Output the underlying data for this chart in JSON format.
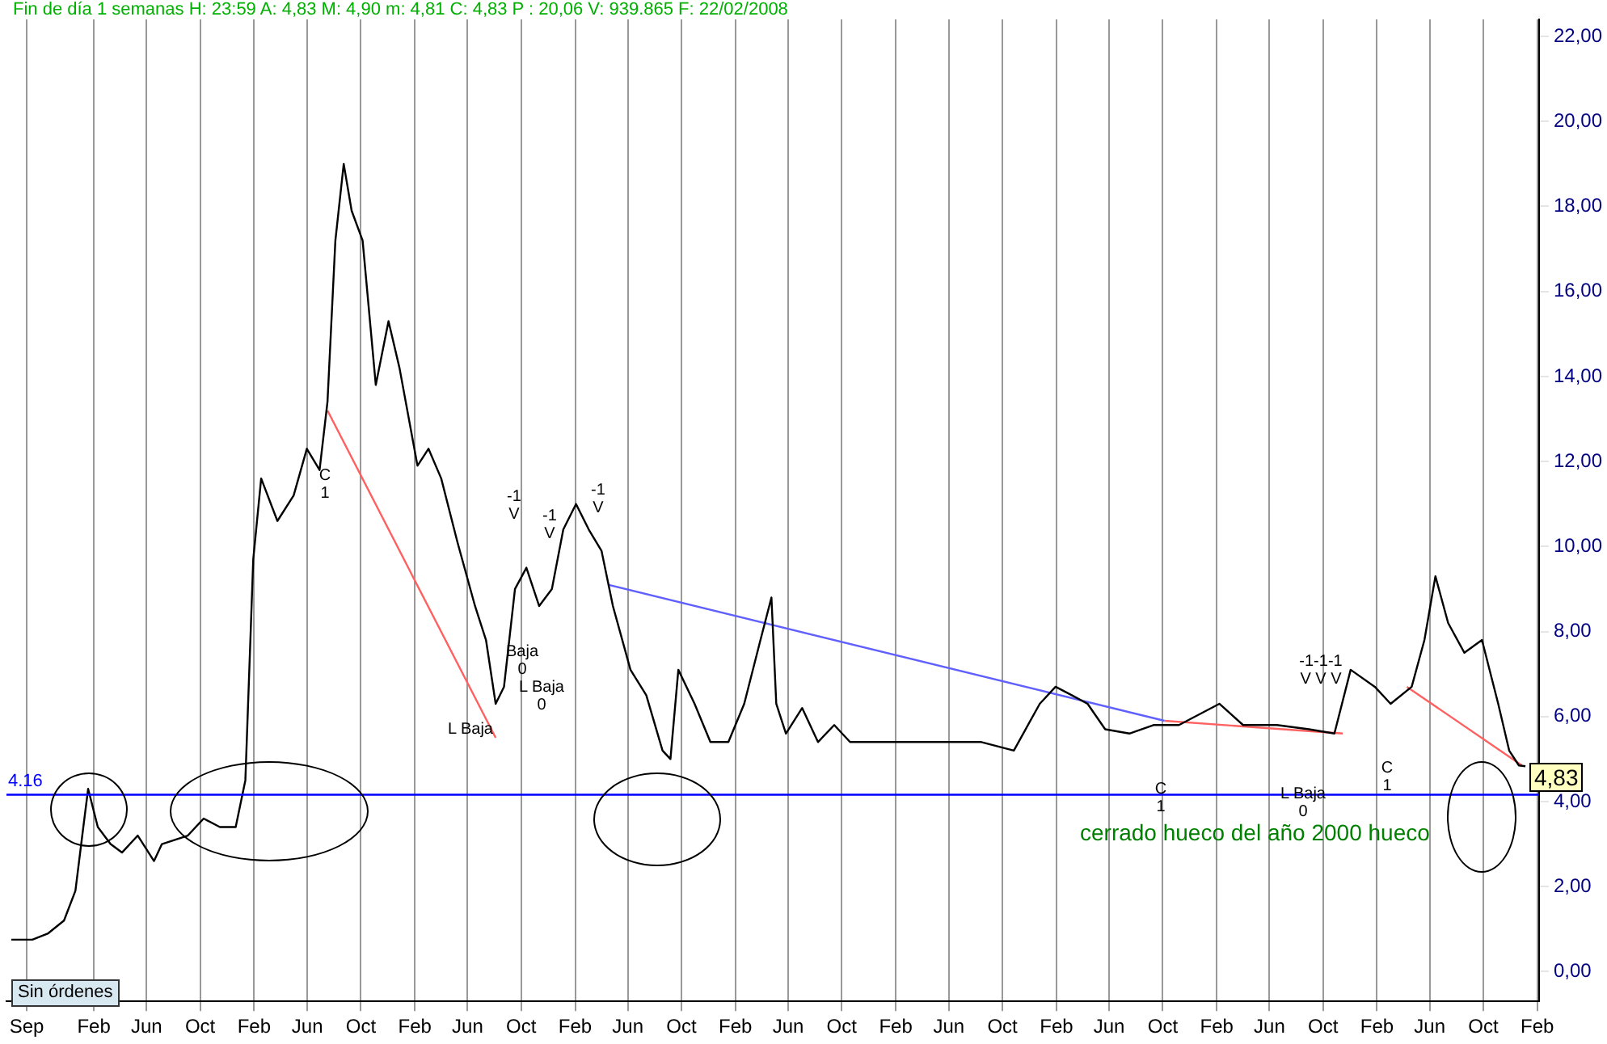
{
  "chart_data": {
    "type": "line",
    "title": "Fin de día 1 semanas H: 23:59 A: 4,83 M: 4,90 m: 4,81 C: 4,83 P : 20,06 V: 939.865 F: 22/02/2008",
    "series": [
      {
        "color": "#000000",
        "x": [
          "1998-07-28",
          "1998-09-14",
          "1998-10-20",
          "1998-11-25",
          "1998-12-21",
          "1999-01-08",
          "1999-01-19",
          "1999-02-10",
          "1999-03-11",
          "1999-04-06",
          "1999-05-12",
          "1999-06-18",
          "1999-07-06",
          "1999-09-03",
          "1999-10-09",
          "1999-11-15",
          "1999-12-21",
          "2000-01-12",
          "2000-01-30",
          "2000-02-17",
          "2000-03-25",
          "2000-05-01",
          "2000-05-31",
          "2000-06-29",
          "2000-07-17",
          "2000-08-04",
          "2000-08-23",
          "2000-09-10",
          "2000-10-05",
          "2000-11-04",
          "2000-12-03",
          "2000-12-28",
          "2001-02-07",
          "2001-03-04",
          "2001-04-02",
          "2001-05-09",
          "2001-06-18",
          "2001-07-13",
          "2001-08-04",
          "2001-08-23",
          "2001-09-17",
          "2001-10-13",
          "2001-11-11",
          "2001-12-10",
          "2002-01-05",
          "2002-02-03",
          "2002-03-04",
          "2002-04-02",
          "2002-04-28",
          "2002-06-07",
          "2002-07-13",
          "2002-08-19",
          "2002-09-06",
          "2002-09-24",
          "2002-10-31",
          "2002-12-06",
          "2003-01-16",
          "2003-02-21",
          "2003-03-30",
          "2003-04-24",
          "2003-05-05",
          "2003-05-27",
          "2003-07-03",
          "2003-08-08",
          "2003-09-14",
          "2003-10-20",
          "2004-01-05",
          "2004-03-18",
          "2004-06-02",
          "2004-08-14",
          "2004-10-27",
          "2004-12-25",
          "2005-01-30",
          "2005-03-08",
          "2005-04-13",
          "2005-05-23",
          "2005-07-17",
          "2005-09-10",
          "2005-11-07",
          "2006-02-07",
          "2006-04-02",
          "2006-06-18",
          "2006-08-30",
          "2006-10-27",
          "2006-12-03",
          "2007-01-27",
          "2007-03-04",
          "2007-04-21",
          "2007-05-20",
          "2007-06-14",
          "2007-07-13",
          "2007-08-19",
          "2007-09-28",
          "2007-11-04",
          "2007-11-29",
          "2007-12-21",
          "2008-01-05"
        ],
        "values": [
          0.75,
          0.75,
          0.9,
          1.2,
          1.9,
          3.4,
          4.3,
          3.4,
          3.0,
          2.8,
          3.2,
          2.6,
          3.0,
          3.2,
          3.6,
          3.4,
          3.4,
          4.5,
          9.7,
          11.6,
          10.6,
          11.2,
          12.3,
          11.8,
          13.4,
          17.2,
          19.0,
          17.9,
          17.2,
          13.8,
          15.3,
          14.2,
          11.9,
          12.3,
          11.6,
          10.1,
          8.6,
          7.8,
          6.3,
          6.7,
          9.0,
          9.5,
          8.6,
          9.0,
          10.4,
          11.0,
          10.4,
          9.9,
          8.6,
          7.1,
          6.5,
          5.2,
          5.0,
          7.1,
          6.3,
          5.4,
          5.4,
          6.3,
          7.8,
          8.8,
          6.3,
          5.6,
          6.2,
          5.4,
          5.8,
          5.4,
          5.4,
          5.4,
          5.4,
          5.4,
          5.2,
          6.3,
          6.7,
          6.5,
          6.3,
          5.7,
          5.6,
          5.8,
          5.8,
          6.3,
          5.8,
          5.8,
          5.7,
          5.6,
          7.1,
          6.7,
          6.3,
          6.7,
          7.8,
          9.3,
          8.2,
          7.5,
          7.8,
          6.3,
          5.2,
          4.85,
          4.83
        ]
      },
      {
        "type": "line",
        "color": "#ff6060",
        "x": [
          "2000-07-17",
          "2001-08-04"
        ],
        "values": [
          13.2,
          5.5
        ]
      },
      {
        "type": "line",
        "color": "#6060ff",
        "x": [
          "2002-04-17",
          "2005-10-05"
        ],
        "values": [
          9.1,
          5.9
        ]
      },
      {
        "type": "line",
        "color": "#ff6060",
        "x": [
          "2005-10-05",
          "2006-11-15"
        ],
        "values": [
          5.9,
          5.6
        ]
      },
      {
        "type": "line",
        "color": "#ff6060",
        "x": [
          "2007-04-10",
          "2007-12-28"
        ],
        "values": [
          6.7,
          4.85
        ]
      }
    ],
    "xlim": [
      "1998-07-17",
      "2008-02-05"
    ],
    "xticks": [
      {
        "value": "1998-09-01",
        "label": "Sep"
      },
      {
        "value": "1999-02-01",
        "label": "Feb"
      },
      {
        "value": "1999-06-01",
        "label": "Jun"
      },
      {
        "value": "1999-10-01",
        "label": "Oct"
      },
      {
        "value": "2000-02-01",
        "label": "Feb"
      },
      {
        "value": "2000-06-01",
        "label": "Jun"
      },
      {
        "value": "2000-10-01",
        "label": "Oct"
      },
      {
        "value": "2001-02-01",
        "label": "Feb"
      },
      {
        "value": "2001-06-01",
        "label": "Jun"
      },
      {
        "value": "2001-10-01",
        "label": "Oct"
      },
      {
        "value": "2002-02-01",
        "label": "Feb"
      },
      {
        "value": "2002-06-01",
        "label": "Jun"
      },
      {
        "value": "2002-10-01",
        "label": "Oct"
      },
      {
        "value": "2003-02-01",
        "label": "Feb"
      },
      {
        "value": "2003-06-01",
        "label": "Jun"
      },
      {
        "value": "2003-10-01",
        "label": "Oct"
      },
      {
        "value": "2004-02-01",
        "label": "Feb"
      },
      {
        "value": "2004-06-01",
        "label": "Jun"
      },
      {
        "value": "2004-10-01",
        "label": "Oct"
      },
      {
        "value": "2005-02-01",
        "label": "Feb"
      },
      {
        "value": "2005-06-01",
        "label": "Jun"
      },
      {
        "value": "2005-10-01",
        "label": "Oct"
      },
      {
        "value": "2006-02-01",
        "label": "Feb"
      },
      {
        "value": "2006-06-01",
        "label": "Jun"
      },
      {
        "value": "2006-10-01",
        "label": "Oct"
      },
      {
        "value": "2007-02-01",
        "label": "Feb"
      },
      {
        "value": "2007-06-01",
        "label": "Jun"
      },
      {
        "value": "2007-10-01",
        "label": "Oct"
      },
      {
        "value": "2008-02-01",
        "label": "Feb"
      }
    ],
    "ylim": [
      -0.7,
      22.4
    ],
    "yticks": [
      {
        "value": 0,
        "label": "0,00"
      },
      {
        "value": 2,
        "label": "2,00"
      },
      {
        "value": 4,
        "label": "4,00"
      },
      {
        "value": 6,
        "label": "6,00"
      },
      {
        "value": 8,
        "label": "8,00"
      },
      {
        "value": 10,
        "label": "10,00"
      },
      {
        "value": 12,
        "label": "12,00"
      },
      {
        "value": 14,
        "label": "14,00"
      },
      {
        "value": 16,
        "label": "16,00"
      },
      {
        "value": 18,
        "label": "18,00"
      },
      {
        "value": 20,
        "label": "20,00"
      },
      {
        "value": 22,
        "label": "22,00"
      }
    ],
    "ref_lines": [
      {
        "axis": "y",
        "value": 4.16,
        "label": "4.16",
        "color": "#0000ff"
      }
    ],
    "annotations": [
      "4,83",
      "C\n1",
      "-1\nV",
      "-1\nV",
      "L Baja",
      "Baja\n0",
      "L Baja\n0",
      "-1\nV",
      "C\n1",
      "-1-1-1\nV V V",
      "L Baja\n0",
      "C\n1",
      "cerrado hueco del año 2000 hueco",
      "Sin órdenes"
    ],
    "grid": "x",
    "legend": false,
    "marker": "none",
    "line_style": "solid"
  }
}
